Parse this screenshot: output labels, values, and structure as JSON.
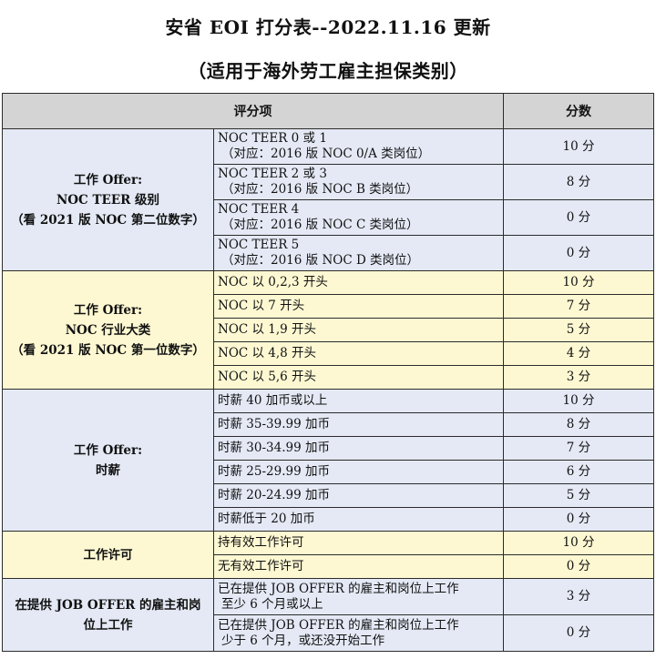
{
  "title": "安省 EOI 打分表--2022.11.16 更新",
  "subtitle": "（适用于海外劳工雇主担保类别）",
  "table": {
    "header": {
      "item": "评分项",
      "score": "分数"
    },
    "groups": [
      {
        "category": [
          "工作 Offer:",
          "NOC TEER 级别",
          "（看 2021 版 NOC 第二位数字）"
        ],
        "rows": [
          {
            "option": "NOC TEER 0 或 1",
            "note": "（对应：2016 版 NOC 0/A 类岗位）",
            "score": "10 分"
          },
          {
            "option": "NOC TEER 2 或 3",
            "note": "（对应：2016 版 NOC B 类岗位）",
            "score": "8 分"
          },
          {
            "option": "NOC TEER 4",
            "note": "（对应：2016 版 NOC C 类岗位）",
            "score": "0 分"
          },
          {
            "option": "NOC TEER 5",
            "note": "（对应：2016 版 NOC D 类岗位）",
            "score": "0 分"
          }
        ]
      },
      {
        "category": [
          "工作 Offer:",
          "NOC  行业大类",
          "（看 2021 版 NOC 第一位数字）"
        ],
        "rows": [
          {
            "option": "NOC 以 0,2,3 开头",
            "score": "10 分"
          },
          {
            "option": "NOC 以 7 开头",
            "score": "7 分"
          },
          {
            "option": "NOC 以 1,9 开头",
            "score": "5 分"
          },
          {
            "option": "NOC 以 4,8 开头",
            "score": "4 分"
          },
          {
            "option": "NOC 以 5,6 开头",
            "score": "3 分"
          }
        ]
      },
      {
        "category": [
          "工作 Offer:",
          "时薪"
        ],
        "rows": [
          {
            "option": "时薪 40 加币或以上",
            "score": "10 分"
          },
          {
            "option": "时薪 35-39.99 加币",
            "score": "8 分"
          },
          {
            "option": "时薪 30-34.99 加币",
            "score": "7 分"
          },
          {
            "option": "时薪 25-29.99 加币",
            "score": "6 分"
          },
          {
            "option": "时薪 20-24.99 加币",
            "score": "5 分"
          },
          {
            "option": "时薪低于 20 加币",
            "score": "0 分"
          }
        ]
      },
      {
        "category": [
          "工作许可"
        ],
        "rows": [
          {
            "option": "持有效工作许可",
            "score": "10 分"
          },
          {
            "option": "无有效工作许可",
            "score": "0 分"
          }
        ]
      },
      {
        "category": [
          "在提供 JOB OFFER 的雇主和岗",
          "位上工作"
        ],
        "rows": [
          {
            "option": "已在提供 JOB OFFER 的雇主和岗位上工作",
            "note": "至少 6 个月或以上",
            "score": "3 分"
          },
          {
            "option": "已在提供 JOB OFFER 的雇主和岗位上工作",
            "note": "少于 6 个月，或还没开始工作",
            "score": "0 分"
          }
        ]
      }
    ]
  }
}
